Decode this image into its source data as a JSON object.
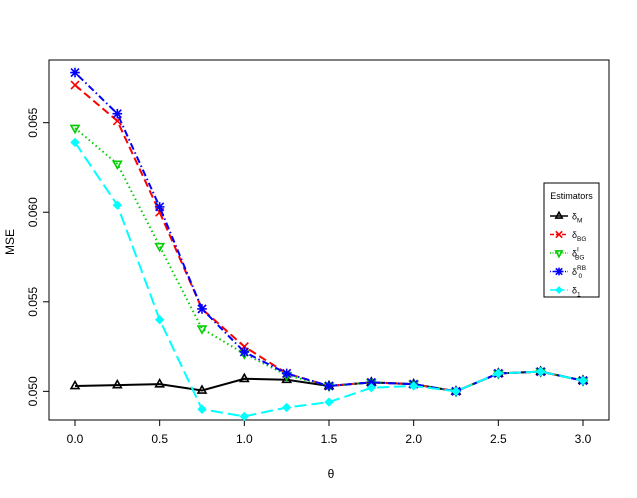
{
  "chart_data": {
    "type": "line",
    "xlabel": "θ",
    "ylabel": "MSE",
    "xlim": [
      0,
      3
    ],
    "ylim": [
      0.0484,
      0.0685
    ],
    "x": [
      0,
      0.25,
      0.5,
      0.75,
      1.0,
      1.25,
      1.5,
      1.75,
      2.0,
      2.25,
      2.5,
      2.75,
      3.0
    ],
    "x_ticks": [
      0,
      0.5,
      1.0,
      1.5,
      2.0,
      2.5,
      3.0
    ],
    "x_tick_labels": [
      "0.0",
      "0.5",
      "1.0",
      "1.5",
      "2.0",
      "2.5",
      "3.0"
    ],
    "y_ticks": [
      0.05,
      0.055,
      0.06,
      0.065
    ],
    "y_tick_labels": [
      "0.050",
      "0.055",
      "0.060",
      "0.065"
    ],
    "grid": false,
    "legend": {
      "title": "Estimators",
      "placement": "right"
    },
    "series": [
      {
        "name": "δM",
        "base": "δ",
        "sub": "M",
        "sup": "",
        "color": "#000000",
        "marker": "triangle-up",
        "dash": "",
        "values": [
          0.0503,
          0.05035,
          0.0504,
          0.05005,
          0.0507,
          0.05065,
          0.0503,
          0.0505,
          0.0504,
          0.05,
          0.051,
          0.0511,
          0.0506
        ]
      },
      {
        "name": "δBG",
        "base": "δ",
        "sub": "BG",
        "sup": "",
        "color": "#ff0000",
        "marker": "cross",
        "dash": "8,4",
        "values": [
          0.0671,
          0.0651,
          0.06,
          0.0546,
          0.0525,
          0.051,
          0.0503,
          0.0505,
          0.0504,
          0.05,
          0.051,
          0.0511,
          0.0506
        ]
      },
      {
        "name": "δIBG",
        "base": "δ",
        "sub": "BG",
        "sup": "I",
        "color": "#00cd00",
        "marker": "triangle-down",
        "dash": "1.5,3",
        "values": [
          0.0647,
          0.0627,
          0.0581,
          0.0535,
          0.0521,
          0.0509,
          0.0503,
          0.0505,
          0.0504,
          0.05,
          0.051,
          0.0511,
          0.0506
        ]
      },
      {
        "name": "δRB0",
        "base": "δ",
        "sub": "0",
        "sup": "RB",
        "color": "#0000ff",
        "marker": "asterisk",
        "dash": "1.5,3,7,3",
        "values": [
          0.0678,
          0.0655,
          0.0603,
          0.0546,
          0.0522,
          0.051,
          0.0503,
          0.0505,
          0.0504,
          0.05,
          0.051,
          0.0511,
          0.0506
        ]
      },
      {
        "name": "δ1",
        "base": "δ",
        "sub": "1",
        "sup": "",
        "color": "#00ffff",
        "marker": "diamond",
        "dash": "12,5",
        "values": [
          0.0639,
          0.0604,
          0.054,
          0.049,
          0.0486,
          0.0491,
          0.0494,
          0.0502,
          0.0503,
          0.05,
          0.051,
          0.0511,
          0.0506
        ]
      }
    ]
  }
}
